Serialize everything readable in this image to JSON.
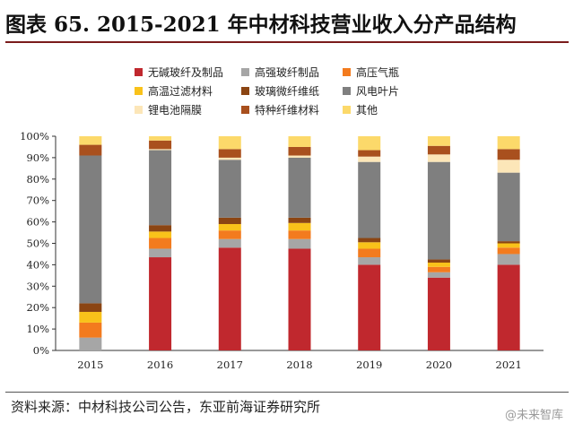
{
  "title": "图表 65. 2015-2021 年中材科技营业收入分产品结构",
  "source": "资料来源：中材科技公司公告，东亚前海证券研究所",
  "watermark": "@未来智库",
  "chart_data": {
    "type": "bar",
    "stacked": true,
    "categories": [
      "2015",
      "2016",
      "2017",
      "2018",
      "2019",
      "2020",
      "2021"
    ],
    "ylim": [
      0,
      100
    ],
    "yticks": [
      "0%",
      "10%",
      "20%",
      "30%",
      "40%",
      "50%",
      "60%",
      "70%",
      "80%",
      "90%",
      "100%"
    ],
    "legend_placement": "top",
    "series": [
      {
        "name": "无碱玻纤及制品",
        "color": "#c0282e",
        "values": [
          0,
          43.5,
          48,
          47.5,
          40,
          34,
          40
        ]
      },
      {
        "name": "高强玻纤制品",
        "color": "#a6a6a6",
        "values": [
          6,
          4,
          4,
          4.5,
          3.5,
          2.5,
          5
        ]
      },
      {
        "name": "高压气瓶",
        "color": "#f37b1e",
        "values": [
          7,
          5,
          4,
          4,
          4,
          2.5,
          3
        ]
      },
      {
        "name": "高温过滤材料",
        "color": "#f9c21a",
        "values": [
          5,
          3,
          3,
          3.5,
          3,
          2,
          2
        ]
      },
      {
        "name": "玻璃微纤维纸",
        "color": "#8b4513",
        "values": [
          4,
          3,
          3,
          2.5,
          2,
          1.5,
          1
        ]
      },
      {
        "name": "风电叶片",
        "color": "#7f7f7f",
        "values": [
          69,
          35,
          27,
          28,
          35.5,
          45.5,
          32
        ]
      },
      {
        "name": "锂电池隔膜",
        "color": "#fce6b8",
        "values": [
          0,
          0.5,
          1,
          1,
          2.5,
          3.5,
          6
        ]
      },
      {
        "name": "特种纤维材料",
        "color": "#a9501e",
        "values": [
          5,
          4,
          4,
          4,
          3,
          4,
          5
        ]
      },
      {
        "name": "其他",
        "color": "#fcd96a",
        "values": [
          4,
          2,
          6,
          5,
          6.5,
          4.5,
          6
        ]
      }
    ]
  }
}
